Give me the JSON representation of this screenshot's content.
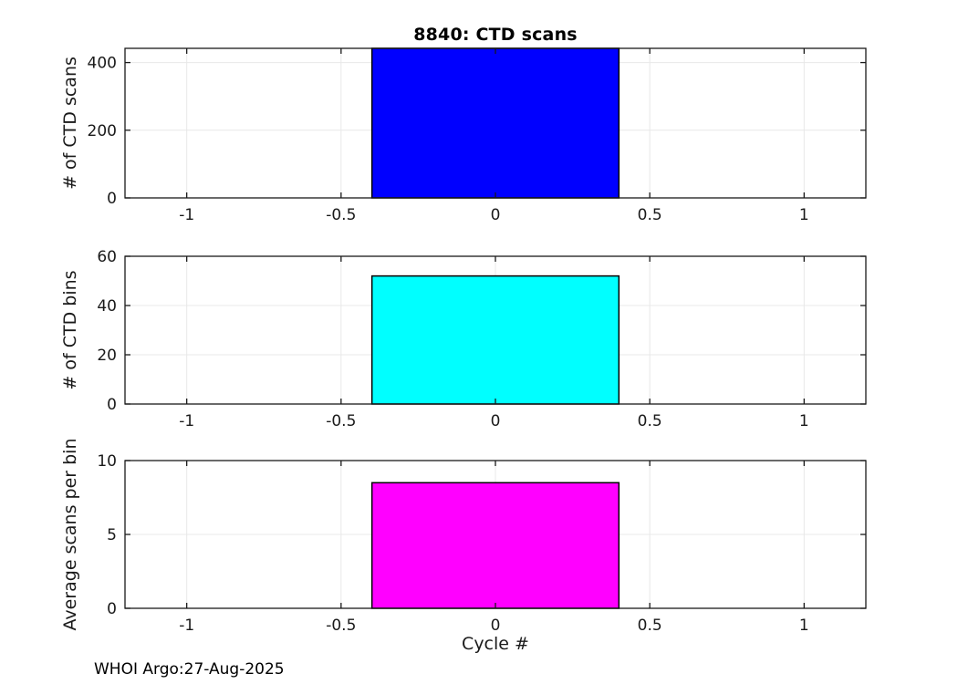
{
  "figure": {
    "title": "8840: CTD scans",
    "xlabel": "Cycle #",
    "footer": "WHOI Argo:27-Aug-2025",
    "background_color": "#ffffff",
    "axes_color": "#1a1a1a",
    "grid_color": "#e8e8e8"
  },
  "chart_data": [
    {
      "type": "bar",
      "title": "8840: CTD scans",
      "ylabel": "# of CTD scans",
      "x": [
        0
      ],
      "values": [
        442
      ],
      "bar_width": 0.8,
      "bar_color": "#0000ff",
      "bar_edge_color": "#000000",
      "xlim": [
        -1.2,
        1.2
      ],
      "ylim": [
        0,
        442
      ],
      "xticks": [
        -1,
        -0.5,
        0,
        0.5,
        1
      ],
      "yticks": [
        0,
        200,
        400
      ],
      "grid": true,
      "legend": "none"
    },
    {
      "type": "bar",
      "title": "",
      "ylabel": "# of CTD bins",
      "x": [
        0
      ],
      "values": [
        52
      ],
      "bar_width": 0.8,
      "bar_color": "#00ffff",
      "bar_edge_color": "#000000",
      "xlim": [
        -1.2,
        1.2
      ],
      "ylim": [
        0,
        60
      ],
      "xticks": [
        -1,
        -0.5,
        0,
        0.5,
        1
      ],
      "yticks": [
        0,
        20,
        40,
        60
      ],
      "grid": true,
      "legend": "none"
    },
    {
      "type": "bar",
      "title": "",
      "ylabel": "Average scans per bin",
      "xlabel": "Cycle #",
      "x": [
        0
      ],
      "values": [
        8.5
      ],
      "bar_width": 0.8,
      "bar_color": "#ff00ff",
      "bar_edge_color": "#000000",
      "xlim": [
        -1.2,
        1.2
      ],
      "ylim": [
        0,
        10
      ],
      "xticks": [
        -1,
        -0.5,
        0,
        0.5,
        1
      ],
      "yticks": [
        0,
        5,
        10
      ],
      "grid": true,
      "legend": "none"
    }
  ]
}
